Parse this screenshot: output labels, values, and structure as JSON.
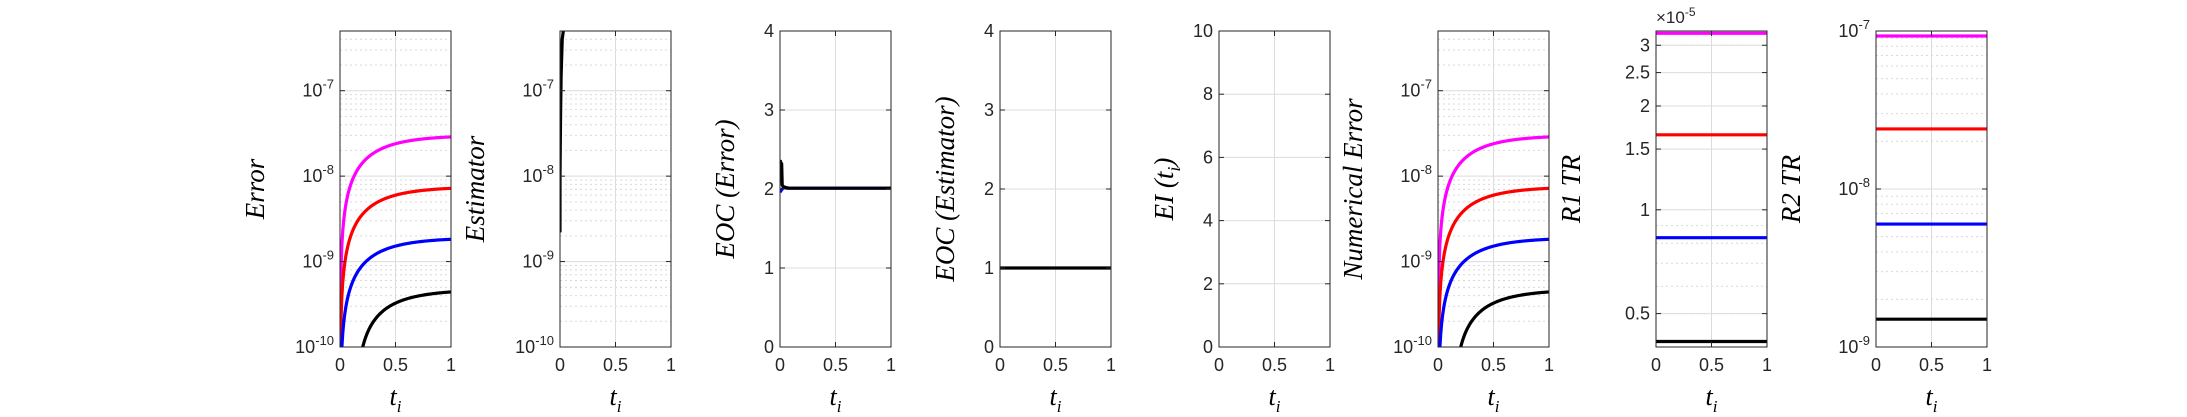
{
  "chart_data": [
    {
      "type": "line",
      "ylabel": "Error",
      "xlabel": "t",
      "xlabel_sub": "i",
      "yscale": "log",
      "xlim": [
        0,
        1
      ],
      "ylim": [
        1e-10,
        5e-07
      ],
      "xticks": [
        "0",
        "0.5",
        "1"
      ],
      "yticks": [
        {
          "v": 1e-10,
          "base": "10",
          "exp": "-10"
        },
        {
          "v": 1e-09,
          "base": "10",
          "exp": "-9"
        },
        {
          "v": 1e-08,
          "base": "10",
          "exp": "-8"
        },
        {
          "v": 1e-07,
          "base": "10",
          "exp": "-7"
        }
      ],
      "grid": true,
      "series": [
        {
          "color": "#ff00ff",
          "kind": "saturate",
          "t0": 0,
          "final": 3e-08
        },
        {
          "color": "#ff0000",
          "kind": "saturate",
          "t0": 0,
          "final": 7.5e-09
        },
        {
          "color": "#0000ff",
          "kind": "saturate",
          "t0": 0,
          "final": 1.9e-09
        },
        {
          "color": "#000000",
          "kind": "saturate",
          "t0": 0.13,
          "final": 4.7e-10
        }
      ]
    },
    {
      "type": "line",
      "ylabel": "Estimator",
      "xlabel": "t",
      "xlabel_sub": "i",
      "yscale": "log",
      "xlim": [
        0,
        1
      ],
      "ylim": [
        1e-10,
        5e-07
      ],
      "xticks": [
        "0",
        "0.5",
        "1"
      ],
      "yticks": [
        {
          "v": 1e-10,
          "base": "10",
          "exp": "-10"
        },
        {
          "v": 1e-09,
          "base": "10",
          "exp": "-9"
        },
        {
          "v": 1e-08,
          "base": "10",
          "exp": "-8"
        },
        {
          "v": 1e-07,
          "base": "10",
          "exp": "-7"
        }
      ],
      "grid": true,
      "series": [
        {
          "color": "#000000",
          "kind": "points",
          "x": [
            0.0,
            0.0,
            0.005,
            0.01,
            0.02,
            0.03
          ],
          "y": [
            2.2e-09,
            1e-08,
            5e-08,
            1.5e-07,
            4e-07,
            5e-07
          ]
        }
      ]
    },
    {
      "type": "line",
      "ylabel": "EOC (Error)",
      "xlabel": "t",
      "xlabel_sub": "i",
      "yscale": "linear",
      "xlim": [
        0,
        1
      ],
      "ylim": [
        0,
        4
      ],
      "xticks": [
        "0",
        "0.5",
        "1"
      ],
      "yticks": [
        {
          "v": 0,
          "t": "0"
        },
        {
          "v": 1,
          "t": "1"
        },
        {
          "v": 2,
          "t": "2"
        },
        {
          "v": 3,
          "t": "3"
        },
        {
          "v": 4,
          "t": "4"
        }
      ],
      "grid": true,
      "series": [
        {
          "color": "#0000ff",
          "kind": "points",
          "x": [
            0.0,
            0.01,
            0.02,
            0.04,
            0.06,
            1.0
          ],
          "y": [
            1.96,
            1.98,
            2.0,
            2.02,
            2.01,
            2.01
          ]
        },
        {
          "color": "#000000",
          "kind": "points",
          "x": [
            0.0,
            0.005,
            0.01,
            0.015,
            0.02,
            0.03,
            0.05,
            0.08,
            1.0
          ],
          "y": [
            2.3,
            2.35,
            2.1,
            2.32,
            2.05,
            2.03,
            2.02,
            2.01,
            2.01
          ]
        }
      ]
    },
    {
      "type": "line",
      "ylabel": "EOC (Estimator)",
      "xlabel": "t",
      "xlabel_sub": "i",
      "yscale": "linear",
      "xlim": [
        0,
        1
      ],
      "ylim": [
        0,
        4
      ],
      "xticks": [
        "0",
        "0.5",
        "1"
      ],
      "yticks": [
        {
          "v": 0,
          "t": "0"
        },
        {
          "v": 1,
          "t": "1"
        },
        {
          "v": 2,
          "t": "2"
        },
        {
          "v": 3,
          "t": "3"
        },
        {
          "v": 4,
          "t": "4"
        }
      ],
      "grid": true,
      "series": [
        {
          "color": "#000000",
          "kind": "points",
          "x": [
            0,
            1
          ],
          "y": [
            1,
            1
          ]
        }
      ]
    },
    {
      "type": "line",
      "ylabel": "EI (t",
      "ylabel_sub": "i",
      "ylabel_tail": ")",
      "xlabel": "t",
      "xlabel_sub": "i",
      "yscale": "linear",
      "xlim": [
        0,
        1
      ],
      "ylim": [
        0,
        10
      ],
      "xticks": [
        "0",
        "0.5",
        "1"
      ],
      "yticks": [
        {
          "v": 0,
          "t": "0"
        },
        {
          "v": 2,
          "t": "2"
        },
        {
          "v": 4,
          "t": "4"
        },
        {
          "v": 6,
          "t": "6"
        },
        {
          "v": 8,
          "t": "8"
        },
        {
          "v": 10,
          "t": "10"
        }
      ],
      "grid": true,
      "series": []
    },
    {
      "type": "line",
      "ylabel": "Numerical Error",
      "xlabel": "t",
      "xlabel_sub": "i",
      "yscale": "log",
      "xlim": [
        0,
        1
      ],
      "ylim": [
        1e-10,
        5e-07
      ],
      "xticks": [
        "0",
        "0.5",
        "1"
      ],
      "yticks": [
        {
          "v": 1e-10,
          "base": "10",
          "exp": "-10"
        },
        {
          "v": 1e-09,
          "base": "10",
          "exp": "-9"
        },
        {
          "v": 1e-08,
          "base": "10",
          "exp": "-8"
        },
        {
          "v": 1e-07,
          "base": "10",
          "exp": "-7"
        }
      ],
      "grid": true,
      "series": [
        {
          "color": "#ff00ff",
          "kind": "saturate",
          "t0": 0,
          "final": 3e-08
        },
        {
          "color": "#ff0000",
          "kind": "saturate",
          "t0": 0,
          "final": 7.5e-09
        },
        {
          "color": "#0000ff",
          "kind": "saturate",
          "t0": 0,
          "final": 1.9e-09
        },
        {
          "color": "#000000",
          "kind": "saturate",
          "t0": 0.13,
          "final": 4.7e-10
        }
      ]
    },
    {
      "type": "line",
      "ylabel": "R1 TR",
      "xlabel": "t",
      "xlabel_sub": "i",
      "yscale": "log",
      "xlim": [
        0,
        1
      ],
      "ylim": [
        4e-06,
        3.3e-05
      ],
      "xticks": [
        "0",
        "0.5",
        "1"
      ],
      "yticks": [
        {
          "v": 5e-06,
          "t": "0.5"
        },
        {
          "v": 1e-05,
          "t": "1"
        },
        {
          "v": 1.5e-05,
          "t": "1.5"
        },
        {
          "v": 2e-05,
          "t": "2"
        },
        {
          "v": 2.5e-05,
          "t": "2.5"
        },
        {
          "v": 3e-05,
          "t": "3"
        }
      ],
      "exponent_label": {
        "base": "×10",
        "exp": "-5"
      },
      "grid": true,
      "series": [
        {
          "color": "#ff00ff",
          "kind": "points",
          "x": [
            0,
            1
          ],
          "y": [
            3.25e-05,
            3.25e-05
          ]
        },
        {
          "color": "#ff0000",
          "kind": "points",
          "x": [
            0,
            1
          ],
          "y": [
            1.65e-05,
            1.65e-05
          ]
        },
        {
          "color": "#0000ff",
          "kind": "points",
          "x": [
            0,
            1
          ],
          "y": [
            8.3e-06,
            8.3e-06
          ]
        },
        {
          "color": "#000000",
          "kind": "points",
          "x": [
            0,
            1
          ],
          "y": [
            4.15e-06,
            4.15e-06
          ]
        }
      ]
    },
    {
      "type": "line",
      "ylabel": "R2 TR",
      "xlabel": "t",
      "xlabel_sub": "i",
      "yscale": "log",
      "xlim": [
        0,
        1
      ],
      "ylim": [
        1e-09,
        1e-07
      ],
      "xticks": [
        "0",
        "0.5",
        "1"
      ],
      "yticks": [
        {
          "v": 1e-09,
          "base": "10",
          "exp": "-9"
        },
        {
          "v": 1e-08,
          "base": "10",
          "exp": "-8"
        },
        {
          "v": 1e-07,
          "base": "10",
          "exp": "-7"
        }
      ],
      "grid": true,
      "series": [
        {
          "color": "#ff00ff",
          "kind": "points",
          "x": [
            0,
            1
          ],
          "y": [
            9.3e-08,
            9.3e-08
          ]
        },
        {
          "color": "#ff0000",
          "kind": "points",
          "x": [
            0,
            1
          ],
          "y": [
            2.4e-08,
            2.4e-08
          ]
        },
        {
          "color": "#0000ff",
          "kind": "points",
          "x": [
            0,
            1
          ],
          "y": [
            6e-09,
            6e-09
          ]
        },
        {
          "color": "#000000",
          "kind": "points",
          "x": [
            0,
            1
          ],
          "y": [
            1.5e-09,
            1.5e-09
          ]
        }
      ]
    }
  ]
}
